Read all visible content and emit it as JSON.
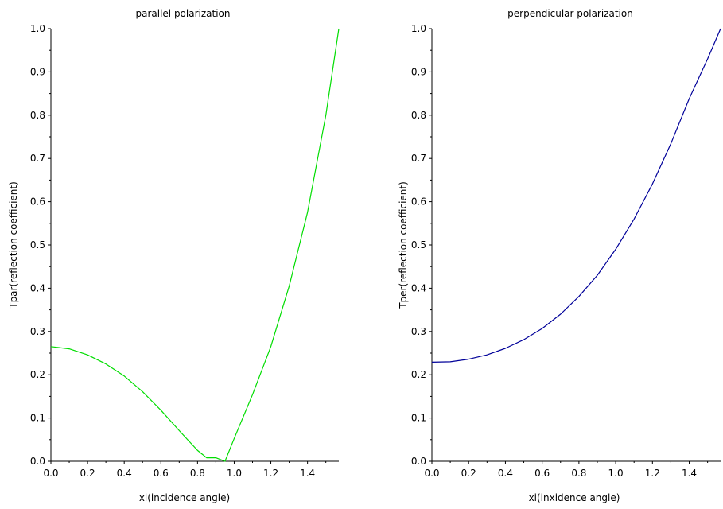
{
  "chart_data": [
    {
      "type": "line",
      "title": "parallel polarization",
      "xlabel": "xi(incidence angle)",
      "ylabel": "Tpar(reflection coefficient)",
      "xlim": [
        0,
        1.5708
      ],
      "ylim": [
        0,
        1
      ],
      "x_ticks": [
        "0.0",
        "0.2",
        "0.4",
        "0.6",
        "0.8",
        "1.0",
        "1.2",
        "1.4"
      ],
      "y_ticks": [
        "0.0",
        "0.1",
        "0.2",
        "0.3",
        "0.4",
        "0.5",
        "0.6",
        "0.7",
        "0.8",
        "0.9",
        "1.0"
      ],
      "grid": false,
      "series": [
        {
          "color": "#00dd00",
          "x": [
            0,
            0.1,
            0.2,
            0.3,
            0.4,
            0.5,
            0.6,
            0.7,
            0.8,
            0.85,
            0.9,
            0.95,
            1.0,
            1.1,
            1.2,
            1.3,
            1.4,
            1.5,
            1.5708
          ],
          "y": [
            0.265,
            0.26,
            0.246,
            0.225,
            0.197,
            0.161,
            0.118,
            0.071,
            0.025,
            0.008,
            0.008,
            0.0,
            0.053,
            0.154,
            0.265,
            0.405,
            0.575,
            0.8,
            1.0
          ]
        }
      ]
    },
    {
      "type": "line",
      "title": "perpendicular polarization",
      "xlabel": "xi(inxidence angle)",
      "ylabel": "Tper(reflection coefficient)",
      "xlim": [
        0,
        1.5708
      ],
      "ylim": [
        0,
        1
      ],
      "x_ticks": [
        "0.0",
        "0.2",
        "0.4",
        "0.6",
        "0.8",
        "1.0",
        "1.2",
        "1.4"
      ],
      "y_ticks": [
        "0.0",
        "0.1",
        "0.2",
        "0.3",
        "0.4",
        "0.5",
        "0.6",
        "0.7",
        "0.8",
        "0.9",
        "1.0"
      ],
      "grid": false,
      "series": [
        {
          "color": "#000099",
          "x": [
            0,
            0.1,
            0.2,
            0.3,
            0.4,
            0.5,
            0.6,
            0.7,
            0.8,
            0.9,
            1.0,
            1.1,
            1.2,
            1.3,
            1.4,
            1.5,
            1.5708
          ],
          "y": [
            0.229,
            0.23,
            0.236,
            0.246,
            0.261,
            0.281,
            0.307,
            0.34,
            0.381,
            0.43,
            0.49,
            0.56,
            0.641,
            0.734,
            0.838,
            0.93,
            1.0
          ]
        }
      ]
    }
  ]
}
